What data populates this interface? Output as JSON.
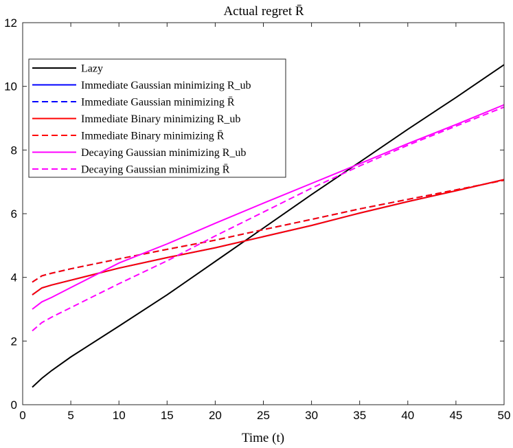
{
  "chart_data": {
    "type": "line",
    "title": "Actual regret R̄",
    "xlabel": "Time (t)",
    "ylabel": "",
    "xlim": [
      0,
      50
    ],
    "ylim": [
      0,
      12
    ],
    "xticks": [
      0,
      5,
      10,
      15,
      20,
      25,
      30,
      35,
      40,
      45,
      50
    ],
    "yticks": [
      0,
      2,
      4,
      6,
      8,
      10,
      12
    ],
    "grid": false,
    "legend_position": "upper-left",
    "series": [
      {
        "name": "Lazy",
        "color": "#000000",
        "dash": "solid",
        "x": [
          1,
          2,
          3,
          5,
          10,
          15,
          20,
          25,
          30,
          35,
          40,
          45,
          50
        ],
        "y": [
          0.55,
          0.83,
          1.07,
          1.5,
          2.47,
          3.45,
          4.5,
          5.55,
          6.6,
          7.62,
          8.65,
          9.65,
          10.68
        ]
      },
      {
        "name": "Immediate Gaussian minimizing R_ub",
        "color": "#0000ff",
        "dash": "solid",
        "x": [
          1,
          2,
          3,
          5,
          10,
          15,
          20,
          25,
          30,
          35,
          40,
          45,
          50
        ],
        "y": [
          3.45,
          3.67,
          3.76,
          3.91,
          4.29,
          4.62,
          4.93,
          5.28,
          5.63,
          6.02,
          6.38,
          6.72,
          7.07
        ]
      },
      {
        "name": "Immediate Gaussian minimizing R̄",
        "color": "#0000ff",
        "dash": "dashed",
        "x": [
          1,
          2,
          3,
          5,
          10,
          15,
          20,
          25,
          30,
          35,
          40,
          45,
          50
        ],
        "y": [
          3.85,
          4.05,
          4.13,
          4.27,
          4.58,
          4.88,
          5.17,
          5.5,
          5.82,
          6.15,
          6.45,
          6.75,
          7.05
        ]
      },
      {
        "name": "Immediate Binary minimizing R_ub",
        "color": "#ff0000",
        "dash": "solid",
        "x": [
          1,
          2,
          3,
          5,
          10,
          15,
          20,
          25,
          30,
          35,
          40,
          45,
          50
        ],
        "y": [
          3.45,
          3.67,
          3.76,
          3.91,
          4.29,
          4.62,
          4.93,
          5.28,
          5.63,
          6.02,
          6.38,
          6.72,
          7.07
        ]
      },
      {
        "name": "Immediate Binary minimizing R̄",
        "color": "#ff0000",
        "dash": "dashed",
        "x": [
          1,
          2,
          3,
          5,
          10,
          15,
          20,
          25,
          30,
          35,
          40,
          45,
          50
        ],
        "y": [
          3.85,
          4.05,
          4.13,
          4.27,
          4.58,
          4.88,
          5.17,
          5.5,
          5.82,
          6.15,
          6.45,
          6.75,
          7.05
        ]
      },
      {
        "name": "Decaying Gaussian minimizing R_ub",
        "color": "#ff00ff",
        "dash": "solid",
        "x": [
          1,
          2,
          3,
          5,
          10,
          15,
          20,
          25,
          30,
          35,
          40,
          45,
          50
        ],
        "y": [
          3.0,
          3.23,
          3.37,
          3.68,
          4.45,
          5.05,
          5.7,
          6.33,
          6.95,
          7.57,
          8.2,
          8.8,
          9.42
        ]
      },
      {
        "name": "Decaying Gaussian minimizing R̄",
        "color": "#ff00ff",
        "dash": "dashed",
        "x": [
          1,
          2,
          3,
          5,
          10,
          15,
          20,
          25,
          30,
          35,
          40,
          45,
          50
        ],
        "y": [
          2.32,
          2.58,
          2.75,
          3.05,
          3.8,
          4.52,
          5.3,
          6.05,
          6.8,
          7.5,
          8.15,
          8.75,
          9.35
        ]
      }
    ]
  }
}
